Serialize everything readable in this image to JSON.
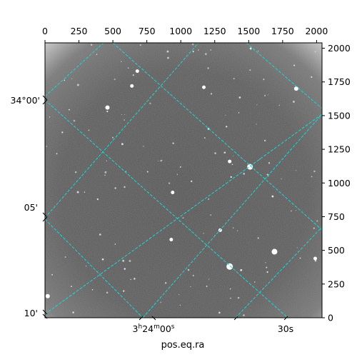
{
  "plot": {
    "x_label": "pos.eq.ra",
    "top_ticks": [
      "0",
      "250",
      "500",
      "750",
      "1000",
      "1250",
      "1500",
      "1750",
      "2000"
    ],
    "right_ticks": [
      "0",
      "250",
      "500",
      "750",
      "1000",
      "1250",
      "1500",
      "1750",
      "2000"
    ],
    "dec_labels": [
      "34°00'",
      "05'",
      "10'"
    ],
    "ra_labels": [
      "30s"
    ],
    "ra_label_main": {
      "h": "3",
      "h_unit": "h",
      "m": "24",
      "m_unit": "m",
      "s": "00",
      "s_unit": "s"
    },
    "grid_color": "#1fd6d6",
    "image_bg": "#4a4a4a"
  },
  "chart_data": {
    "type": "heatmap",
    "title": "",
    "xlabel": "pos.eq.ra",
    "ylabel": "",
    "pixel_axis_x": {
      "range": [
        0,
        2040
      ],
      "ticks": [
        0,
        250,
        500,
        750,
        1000,
        1250,
        1500,
        1750,
        2000
      ]
    },
    "pixel_axis_y": {
      "range": [
        0,
        2040
      ],
      "ticks": [
        0,
        250,
        500,
        750,
        1000,
        1250,
        1500,
        1750,
        2000
      ]
    },
    "world_axis_ra": {
      "tick_labels": [
        "3h24m00s",
        "30s"
      ]
    },
    "world_axis_dec": {
      "tick_labels": [
        "34°00'",
        "05'",
        "10'"
      ]
    },
    "grid": true,
    "colormap": "grayscale",
    "bright_sources_pixel": [
      [
        460,
        1560
      ],
      [
        1510,
        1120
      ],
      [
        1360,
        1160
      ],
      [
        1850,
        1700
      ],
      [
        680,
        1830
      ],
      [
        1690,
        490
      ],
      [
        1360,
        380
      ],
      [
        1290,
        650
      ],
      [
        930,
        580
      ],
      [
        940,
        930
      ],
      [
        20,
        160
      ],
      [
        1990,
        440
      ],
      [
        640,
        1720
      ],
      [
        1170,
        1710
      ]
    ]
  }
}
